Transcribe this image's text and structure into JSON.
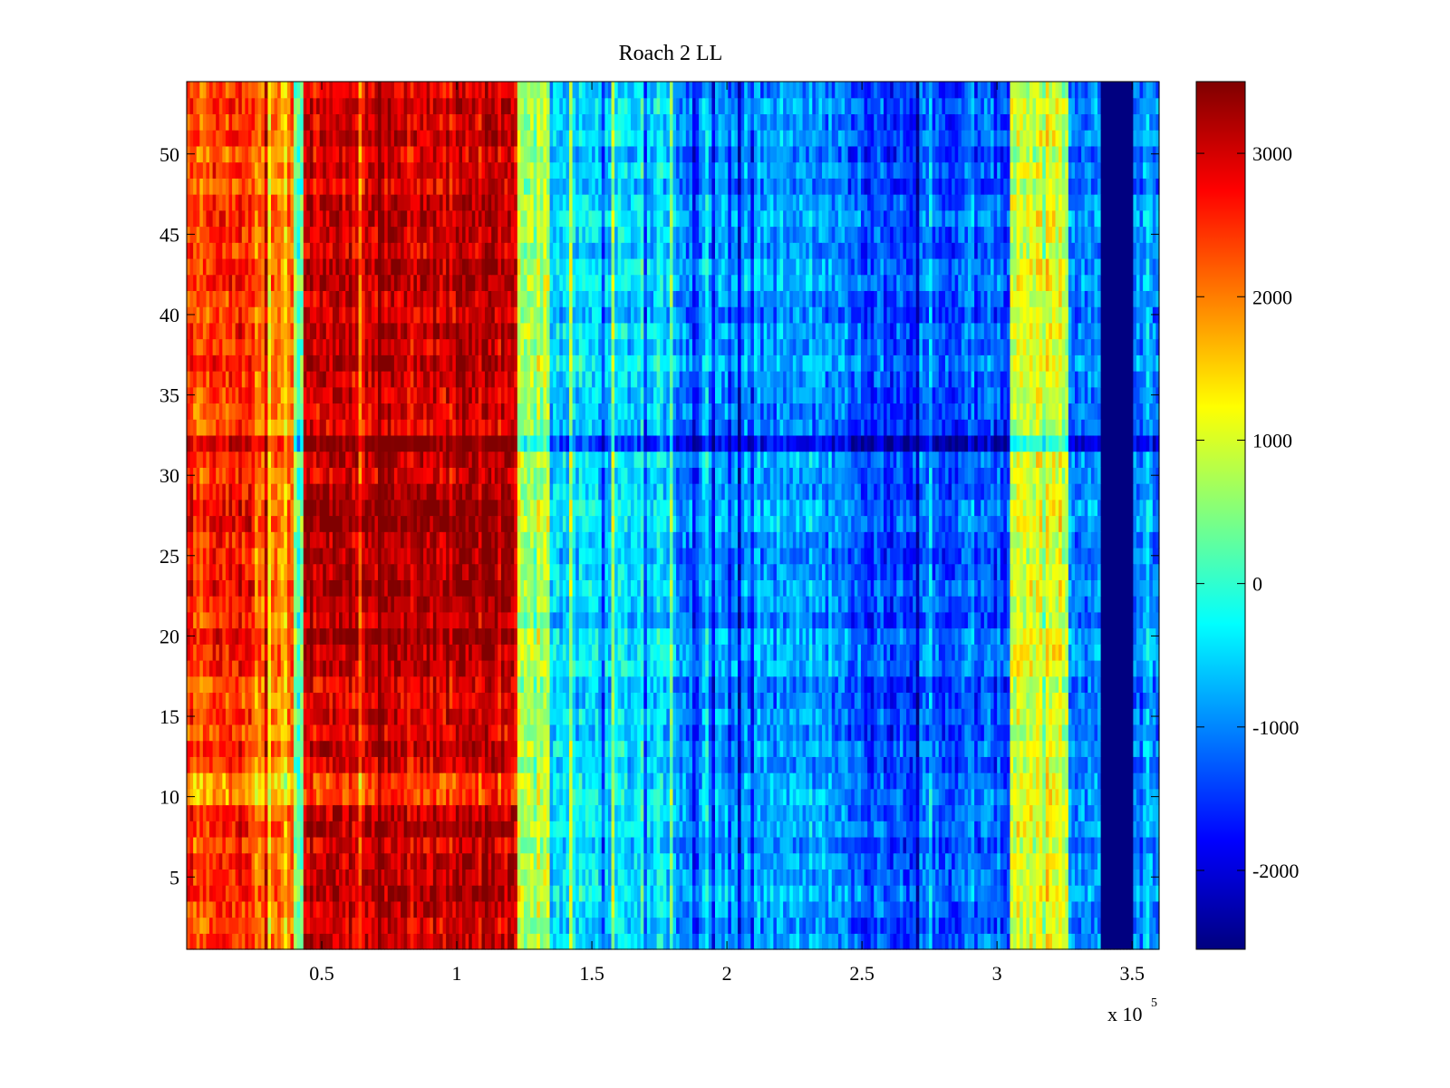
{
  "chart_data": {
    "type": "heatmap",
    "title": "Roach 2 LL",
    "xlabel": "",
    "ylabel": "",
    "x_exponent_label": {
      "base": "x 10",
      "exponent": "5"
    },
    "xlim": [
      0,
      360000
    ],
    "ylim": [
      0.5,
      54.5
    ],
    "x_ticks": [
      {
        "value": 50000,
        "label": "0.5"
      },
      {
        "value": 100000,
        "label": "1"
      },
      {
        "value": 150000,
        "label": "1.5"
      },
      {
        "value": 200000,
        "label": "2"
      },
      {
        "value": 250000,
        "label": "2.5"
      },
      {
        "value": 300000,
        "label": "3"
      },
      {
        "value": 350000,
        "label": "3.5"
      }
    ],
    "y_ticks": [
      {
        "value": 5,
        "label": "5"
      },
      {
        "value": 10,
        "label": "10"
      },
      {
        "value": 15,
        "label": "15"
      },
      {
        "value": 20,
        "label": "20"
      },
      {
        "value": 25,
        "label": "25"
      },
      {
        "value": 30,
        "label": "30"
      },
      {
        "value": 35,
        "label": "35"
      },
      {
        "value": 40,
        "label": "40"
      },
      {
        "value": 45,
        "label": "45"
      },
      {
        "value": 50,
        "label": "50"
      }
    ],
    "rows": 54,
    "colormap": "jet",
    "colorbar": {
      "clim": [
        -2550,
        3500
      ],
      "ticks": [
        {
          "value": 3000,
          "label": "3000"
        },
        {
          "value": 2000,
          "label": "2000"
        },
        {
          "value": 1000,
          "label": "1000"
        },
        {
          "value": 0,
          "label": "0"
        },
        {
          "value": -1000,
          "label": "-1000"
        },
        {
          "value": -2000,
          "label": "-2000"
        }
      ]
    },
    "column_segments": [
      {
        "x_start": 0,
        "x_end": 25000,
        "mean_value": 2400
      },
      {
        "x_start": 25000,
        "x_end": 40000,
        "mean_value": 1900
      },
      {
        "x_start": 40000,
        "x_end": 43000,
        "mean_value": 300
      },
      {
        "x_start": 43000,
        "x_end": 123000,
        "mean_value": 3000
      },
      {
        "x_start": 123000,
        "x_end": 135000,
        "mean_value": 800
      },
      {
        "x_start": 135000,
        "x_end": 180000,
        "mean_value": -500
      },
      {
        "x_start": 180000,
        "x_end": 245000,
        "mean_value": -900
      },
      {
        "x_start": 245000,
        "x_end": 305000,
        "mean_value": -1300
      },
      {
        "x_start": 305000,
        "x_end": 327000,
        "mean_value": 1000
      },
      {
        "x_start": 327000,
        "x_end": 339000,
        "mean_value": -1100
      },
      {
        "x_start": 339000,
        "x_end": 350000,
        "mean_value": -2550
      },
      {
        "x_start": 350000,
        "x_end": 360000,
        "mean_value": -1000
      }
    ],
    "row_anomalies": [
      {
        "row": 32,
        "description": "hotter left region, colder right region",
        "offset": 700
      },
      {
        "rows": [
          20,
          29
        ],
        "description": "hotter band",
        "offset": 250
      },
      {
        "rows": [
          10,
          11
        ],
        "description": "cooler band in left region",
        "offset": -800
      }
    ]
  }
}
